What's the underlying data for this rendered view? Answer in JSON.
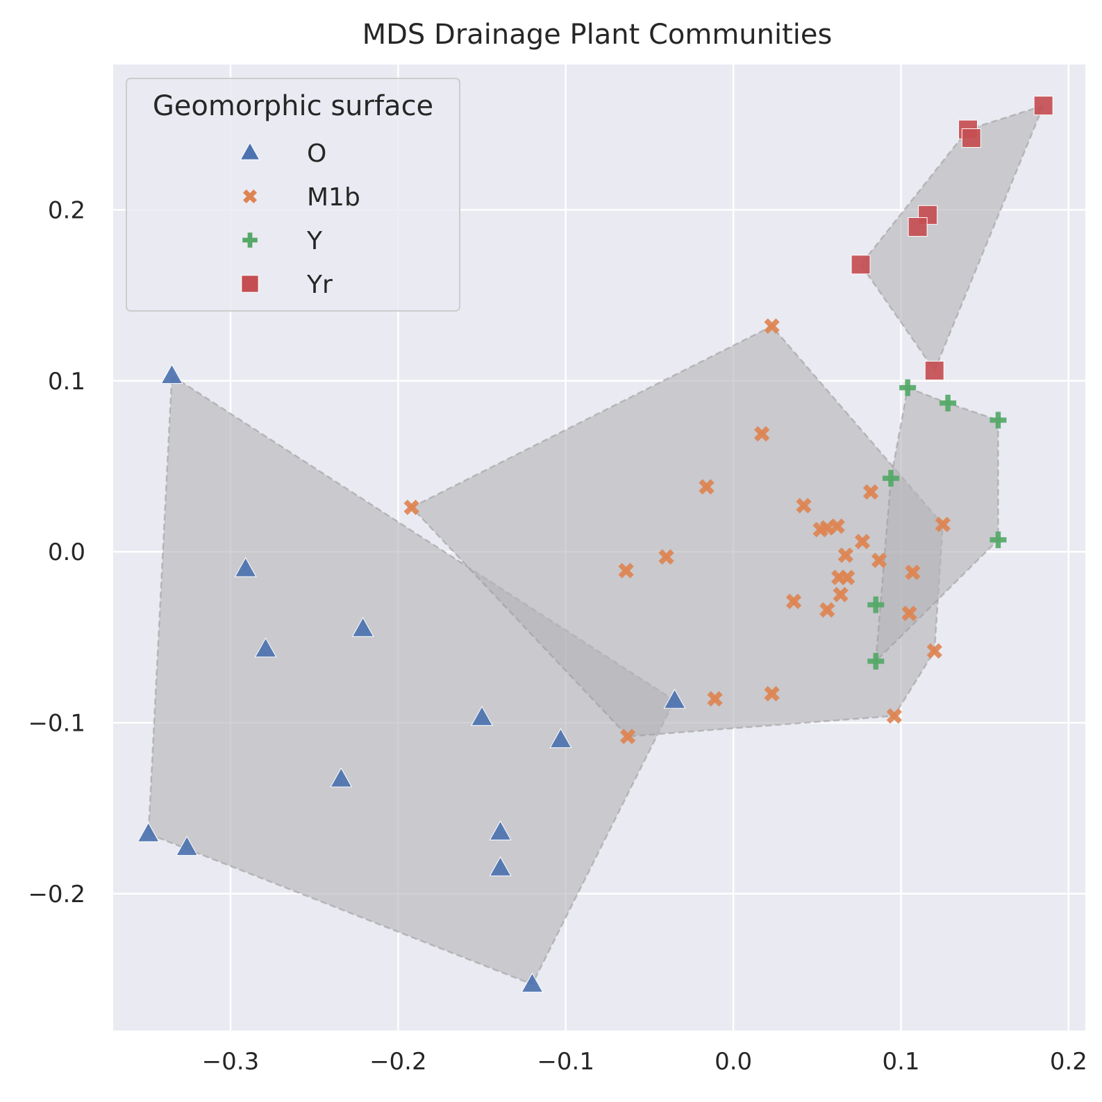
{
  "chart_data": {
    "type": "scatter",
    "title": "MDS Drainage Plant Communities",
    "xlabel": "",
    "ylabel": "",
    "xlim": [
      -0.37,
      0.21
    ],
    "ylim": [
      -0.28,
      0.285
    ],
    "xticks": [
      -0.3,
      -0.2,
      -0.1,
      0.0,
      0.1,
      0.2
    ],
    "yticks": [
      -0.2,
      -0.1,
      0.0,
      0.1,
      0.2
    ],
    "xtick_labels": [
      "−0.3",
      "−0.2",
      "−0.1",
      "0.0",
      "0.1",
      "0.2"
    ],
    "ytick_labels": [
      "−0.2",
      "−0.1",
      "0.0",
      "0.1",
      "0.2"
    ],
    "grid": true,
    "background": "#eaeaf2",
    "hull_fill": "#b4b4b8",
    "legend": {
      "title": "Geomorphic surface",
      "placement": "top-left"
    },
    "series": [
      {
        "name": "O",
        "marker": "triangle",
        "color": "#4c72b0",
        "points": [
          [
            -0.335,
            0.103
          ],
          [
            -0.291,
            -0.01
          ],
          [
            -0.279,
            -0.057
          ],
          [
            -0.221,
            -0.045
          ],
          [
            -0.234,
            -0.133
          ],
          [
            -0.15,
            -0.097
          ],
          [
            -0.103,
            -0.11
          ],
          [
            -0.139,
            -0.164
          ],
          [
            -0.139,
            -0.185
          ],
          [
            -0.035,
            -0.087
          ],
          [
            -0.12,
            -0.253
          ],
          [
            -0.349,
            -0.165
          ],
          [
            -0.326,
            -0.173
          ]
        ],
        "hull": [
          [
            -0.335,
            0.103
          ],
          [
            -0.035,
            -0.087
          ],
          [
            -0.12,
            -0.253
          ],
          [
            -0.349,
            -0.165
          ]
        ]
      },
      {
        "name": "M1b",
        "marker": "x",
        "color": "#dd8452",
        "points": [
          [
            -0.192,
            0.026
          ],
          [
            0.023,
            0.132
          ],
          [
            0.017,
            0.069
          ],
          [
            -0.016,
            0.038
          ],
          [
            -0.064,
            -0.011
          ],
          [
            -0.04,
            -0.003
          ],
          [
            0.042,
            0.027
          ],
          [
            0.052,
            0.013
          ],
          [
            0.056,
            0.014
          ],
          [
            0.062,
            0.015
          ],
          [
            0.077,
            0.006
          ],
          [
            0.067,
            -0.002
          ],
          [
            0.087,
            -0.005
          ],
          [
            0.082,
            0.035
          ],
          [
            0.063,
            -0.015
          ],
          [
            0.068,
            -0.015
          ],
          [
            0.064,
            -0.025
          ],
          [
            0.036,
            -0.029
          ],
          [
            0.056,
            -0.034
          ],
          [
            0.107,
            -0.012
          ],
          [
            0.105,
            -0.036
          ],
          [
            0.125,
            0.016
          ],
          [
            0.12,
            -0.058
          ],
          [
            0.096,
            -0.096
          ],
          [
            0.023,
            -0.083
          ],
          [
            -0.011,
            -0.086
          ],
          [
            -0.063,
            -0.108
          ]
        ],
        "hull": [
          [
            -0.192,
            0.026
          ],
          [
            0.023,
            0.132
          ],
          [
            0.125,
            0.016
          ],
          [
            0.12,
            -0.058
          ],
          [
            0.096,
            -0.096
          ],
          [
            -0.063,
            -0.108
          ]
        ]
      },
      {
        "name": "Y",
        "marker": "plus",
        "color": "#55a868",
        "points": [
          [
            0.104,
            0.096
          ],
          [
            0.128,
            0.087
          ],
          [
            0.158,
            0.077
          ],
          [
            0.094,
            0.043
          ],
          [
            0.158,
            0.007
          ],
          [
            0.085,
            -0.031
          ],
          [
            0.085,
            -0.064
          ]
        ],
        "hull": [
          [
            0.104,
            0.096
          ],
          [
            0.128,
            0.087
          ],
          [
            0.158,
            0.077
          ],
          [
            0.158,
            0.007
          ],
          [
            0.085,
            -0.064
          ],
          [
            0.094,
            0.043
          ]
        ]
      },
      {
        "name": "Yr",
        "marker": "square",
        "color": "#c44e52",
        "points": [
          [
            0.185,
            0.261
          ],
          [
            0.14,
            0.247
          ],
          [
            0.142,
            0.242
          ],
          [
            0.116,
            0.197
          ],
          [
            0.11,
            0.19
          ],
          [
            0.076,
            0.168
          ],
          [
            0.12,
            0.106
          ]
        ],
        "hull": [
          [
            0.185,
            0.261
          ],
          [
            0.14,
            0.247
          ],
          [
            0.076,
            0.168
          ],
          [
            0.12,
            0.106
          ]
        ]
      }
    ]
  }
}
